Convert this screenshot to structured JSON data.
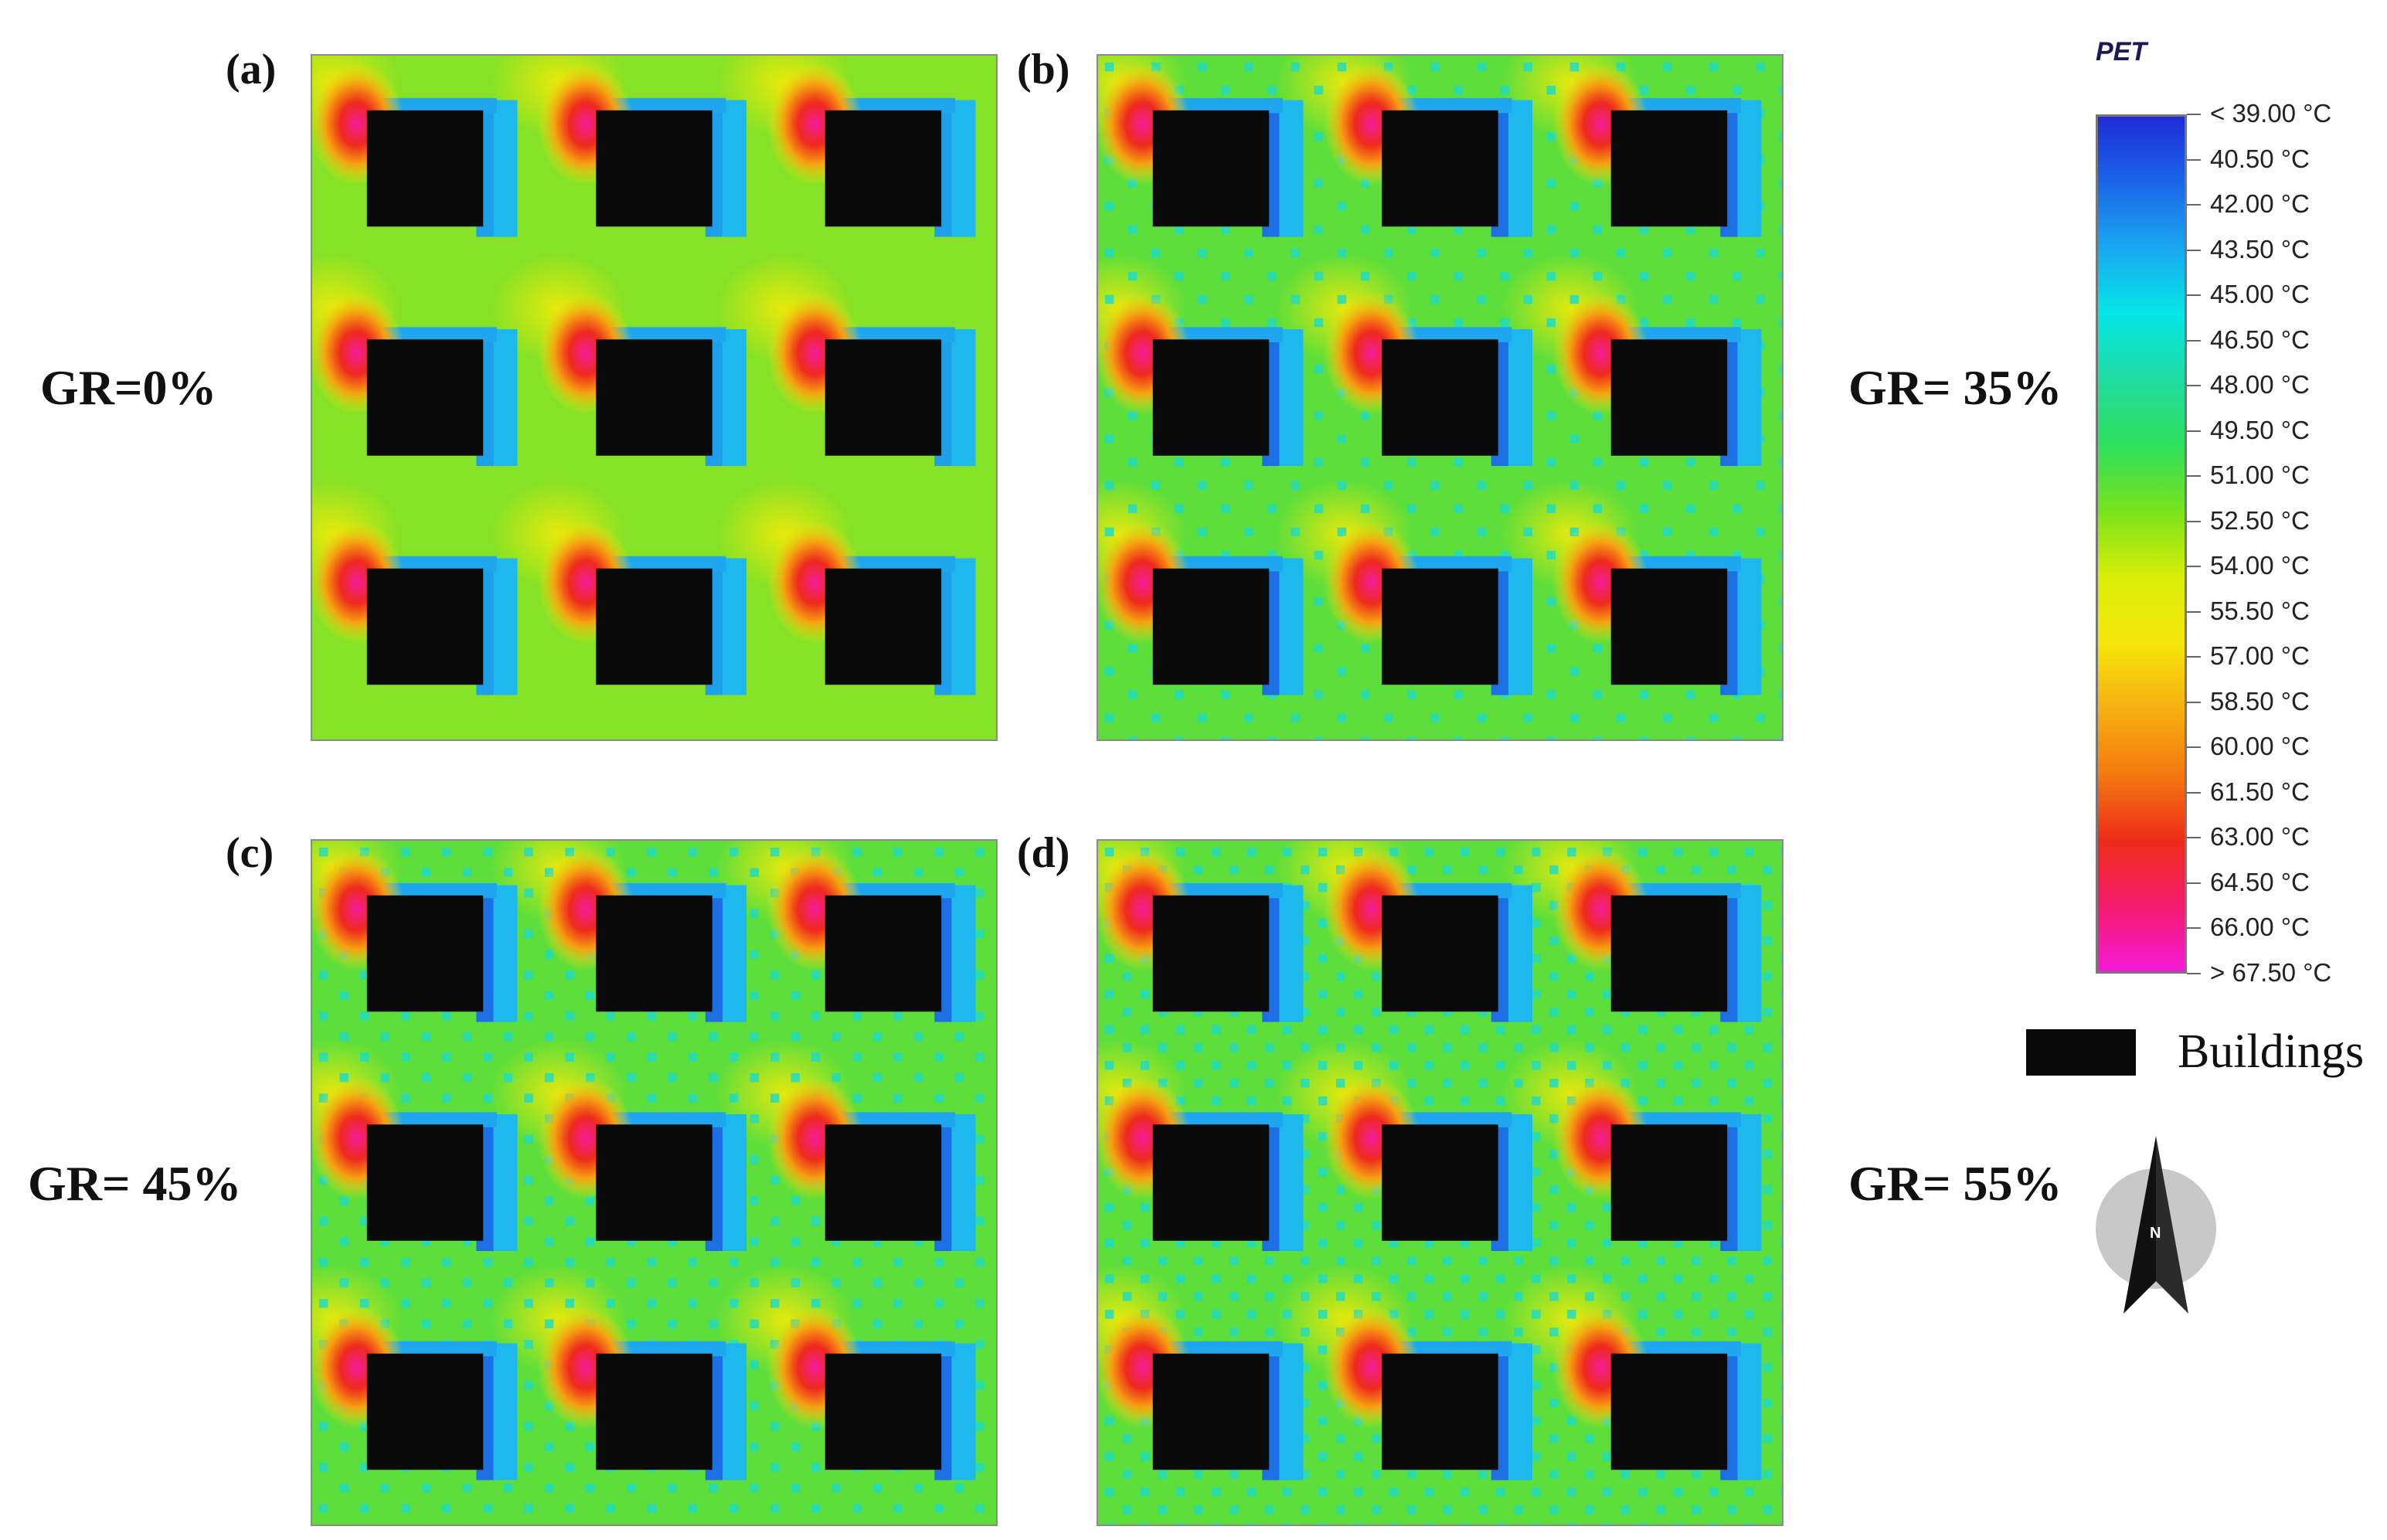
{
  "panels": [
    {
      "tag": "(a)",
      "gr": "GR=0%",
      "vegetation": 0.0
    },
    {
      "tag": "(b)",
      "gr": "GR= 35%",
      "vegetation": 0.35
    },
    {
      "tag": "(c)",
      "gr": "GR= 45%",
      "vegetation": 0.45
    },
    {
      "tag": "(d)",
      "gr": "GR= 55%",
      "vegetation": 0.55
    }
  ],
  "legend": {
    "title": "PET",
    "ticks": [
      "< 39.00 °C",
      "40.50  °C",
      "42.00  °C",
      "43.50  °C",
      "45.00  °C",
      "46.50  °C",
      "48.00  °C",
      "49.50  °C",
      "51.00  °C",
      "52.50  °C",
      "54.00  °C",
      "55.50  °C",
      "57.00  °C",
      "58.50  °C",
      "60.00  °C",
      "61.50  °C",
      "63.00  °C",
      "64.50  °C",
      "66.00  °C",
      "> 67.50 °C"
    ],
    "gradient_colors": [
      "#1f2bd8",
      "#1a66e8",
      "#19a8f0",
      "#05e6e6",
      "#1fdca0",
      "#2ee05c",
      "#79e21c",
      "#d9ee06",
      "#f5e60a",
      "#f6b010",
      "#f47a10",
      "#ee2c18",
      "#f41a6c",
      "#f51ad8"
    ],
    "buildings_label": "Buildings",
    "buildings_color": "#0a0a0a"
  },
  "north": {
    "label": "N"
  }
}
